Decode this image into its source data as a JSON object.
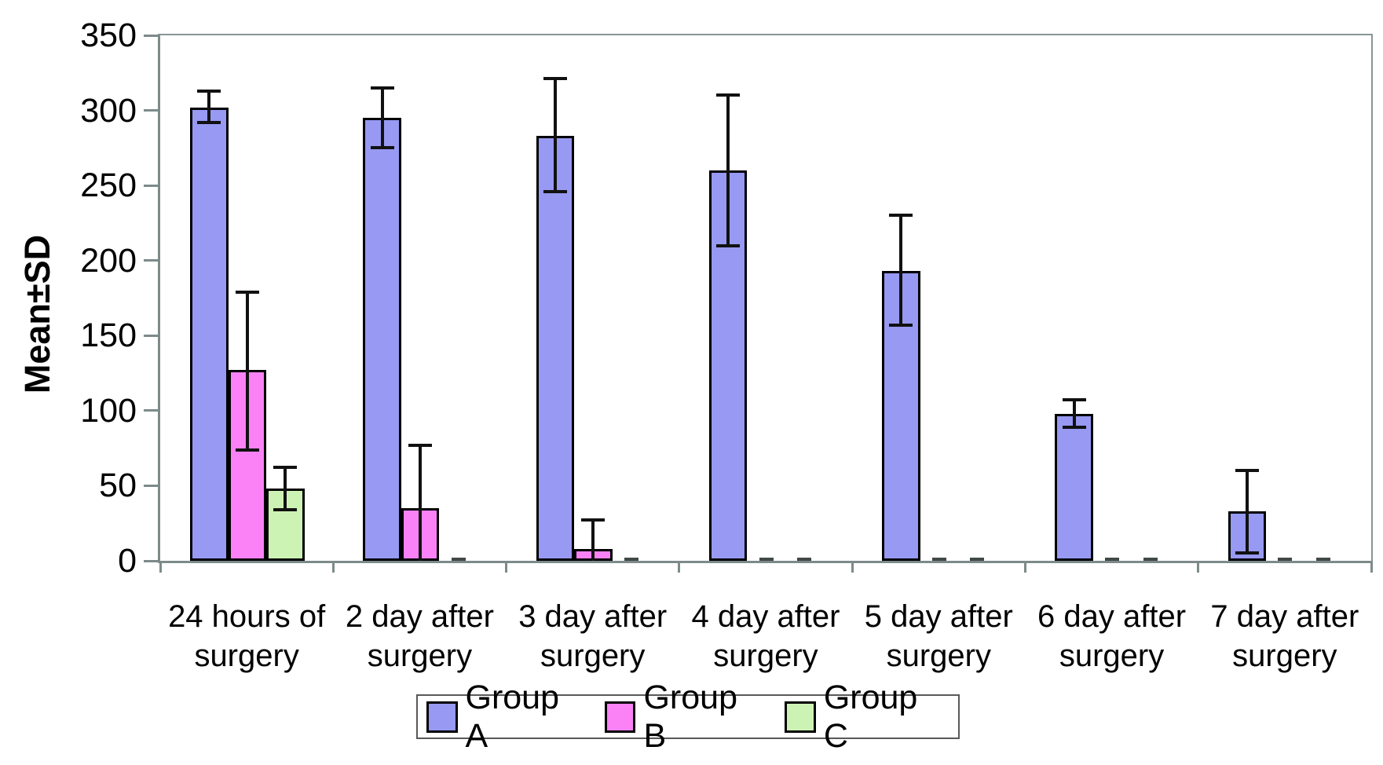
{
  "chart_data": {
    "type": "bar",
    "title": "",
    "ylabel": "Mean±SD",
    "xlabel": "",
    "ylim": [
      0,
      350
    ],
    "ytick_step": 50,
    "yticks": [
      0,
      50,
      100,
      150,
      200,
      250,
      300,
      350
    ],
    "grid": false,
    "legend_position": "bottom",
    "categories": [
      [
        "24 hours of",
        "surgery"
      ],
      [
        "2 day after",
        "surgery"
      ],
      [
        "3 day after",
        "surgery"
      ],
      [
        "4 day after",
        "surgery"
      ],
      [
        "5 day after",
        "surgery"
      ],
      [
        "6 day after",
        "surgery"
      ],
      [
        "7 day after",
        "surgery"
      ]
    ],
    "series": [
      {
        "name": "Group A",
        "color": "#9799F2",
        "values": [
          302,
          295,
          283,
          260,
          193,
          98,
          33
        ],
        "err_hi": [
          313,
          315,
          321,
          310,
          230,
          107,
          60
        ],
        "err_lo": [
          292,
          275,
          246,
          210,
          157,
          89,
          5
        ],
        "err_lo_cap": [
          true,
          true,
          true,
          true,
          true,
          true,
          true
        ]
      },
      {
        "name": "Group B",
        "color": "#FB82F6",
        "values": [
          127,
          35,
          8,
          0,
          0,
          0,
          0
        ],
        "err_hi": [
          179,
          77,
          27,
          null,
          null,
          null,
          null
        ],
        "err_lo": [
          74,
          0,
          0,
          null,
          null,
          null,
          null
        ],
        "err_lo_cap": [
          true,
          false,
          false,
          false,
          false,
          false,
          false
        ]
      },
      {
        "name": "Group C",
        "color": "#CDF3B4",
        "values": [
          48,
          0,
          0,
          0,
          0,
          0,
          0
        ],
        "err_hi": [
          62,
          null,
          null,
          null,
          null,
          null,
          null
        ],
        "err_lo": [
          34,
          null,
          null,
          null,
          null,
          null,
          null
        ],
        "err_lo_cap": [
          true,
          false,
          false,
          false,
          false,
          false,
          false
        ]
      }
    ],
    "colors": {
      "axis": "#7d8a8a",
      "frame": "#8a9595",
      "bar_border": "#000000",
      "error_bar": "#111111",
      "zero_dash": "#404848",
      "text": "#000000",
      "legend_border": "#595959"
    }
  }
}
